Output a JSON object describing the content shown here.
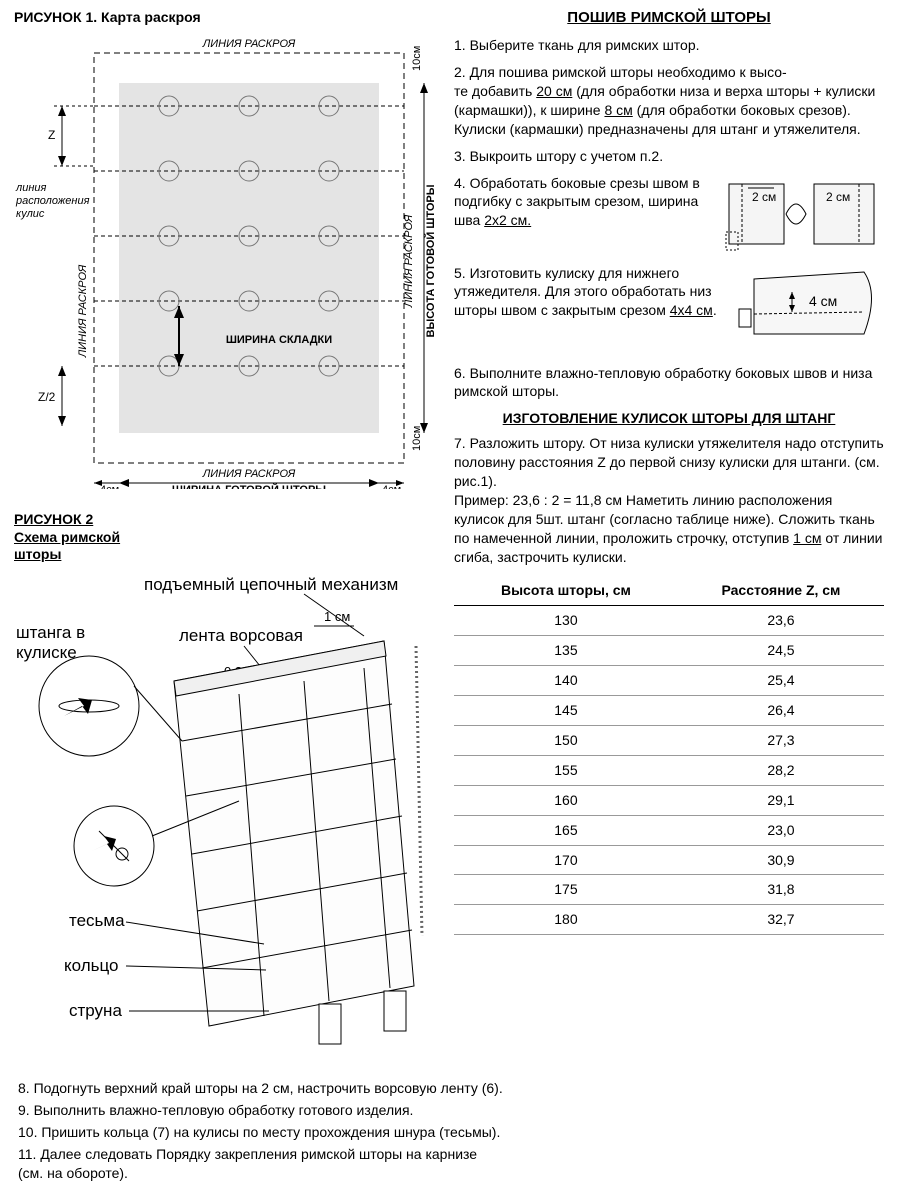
{
  "fig1": {
    "title": "РИСУНОК 1. Карта раскроя",
    "labels": {
      "cut_line": "ЛИНИЯ РАСКРОЯ",
      "height": "ВЫСОТА ГОТОВОЙ ШТОРЫ",
      "width": "ШИРИНА ГОТОВОЙ ШТОРЫ",
      "fold_width": "ШИРИНА СКЛАДКИ",
      "kulis_line1": "линия",
      "kulis_line2": "расположения",
      "kulis_line3": "кулис",
      "z": "Z",
      "z2": "Z/2",
      "m4": "4см",
      "m10": "10см"
    },
    "grid": {
      "rows": 5,
      "cols": 3
    },
    "colors": {
      "fabric": "#e4e4e4",
      "line": "#000000"
    }
  },
  "fig2": {
    "title1": "РИСУНОК 2",
    "title2": "Схема римской",
    "title3": "шторы",
    "labels": {
      "mechanism": "подъемный цепочный механизм",
      "rod": "штанга в",
      "rod2": "кулиске",
      "tape": "лента ворсовая",
      "m1": "1 см",
      "m02": "0,2см",
      "braid": "тесьма",
      "ring": "кольцо",
      "string": "струна"
    }
  },
  "sewing": {
    "title": "ПОШИВ РИМСКОЙ ШТОРЫ",
    "s1": "1. Выберите ткань для римских штор.",
    "s2a": "2. Для пошива римской шторы необходимо к высо-",
    "s2b": "те добавить ",
    "s2c": "20 см",
    "s2d": " (для обработки низа и верха шторы + кулиски (кармашки)), к ширине ",
    "s2e": "8 см",
    "s2f": " (для обработки боковых срезов). Кулиски (кармашки) предназначены для штанг и утяжелителя.",
    "s3": "3. Выкроить штору с учетом п.2.",
    "s4a": "4. Обработать боковые срезы швом в подгибку с закрытым срезом, ширина шва ",
    "s4b": "2х2 см.",
    "s5a": "5. Изготовить кулиску для нижнего утяжедителя. Для этого обработать низ шторы швом с закрытым срезом ",
    "s5b": "4х4 см",
    "s5c": ".",
    "s6": "6. Выполните влажно-тепловую обработку боковых швов и низа римской шторы.",
    "mini4": {
      "l1": "2 см",
      "l2": "2 см"
    },
    "mini5": {
      "l1": "4 см"
    }
  },
  "making": {
    "title": "ИЗГОТОВЛЕНИЕ КУЛИСОК ШТОРЫ ДЛЯ ШТАНГ",
    "s7a": "7. Разложить штору. От низа кулиски утяжелителя надо отступить половину расстояния Z до первой снизу кулиски для штанги. (см. рис.1).",
    "s7b": "Пример: 23,6 : 2 = 11,8 см Наметить линию расположения кулисок для 5шт. штанг (согласно таблице ниже). Сложить ткань по намеченной линии, проложить строчку, отступив ",
    "s7c": "1 см",
    "s7d": " от линии сгиба, застрочить кулиски."
  },
  "table": {
    "h1": "Высота шторы, см",
    "h2": "Расстояние Z, см",
    "rows": [
      [
        "130",
        "23,6"
      ],
      [
        "135",
        "24,5"
      ],
      [
        "140",
        "25,4"
      ],
      [
        "145",
        "26,4"
      ],
      [
        "150",
        "27,3"
      ],
      [
        "155",
        "28,2"
      ],
      [
        "160",
        "29,1"
      ],
      [
        "165",
        "23,0"
      ],
      [
        "170",
        "30,9"
      ],
      [
        "175",
        "31,8"
      ],
      [
        "180",
        "32,7"
      ]
    ]
  },
  "bottom": {
    "s8": "8. Подогнуть верхний край шторы на 2 см, настрочить ворсовую ленту (6).",
    "s9": "9. Выполнить влажно-тепловую обработку готового изделия.",
    "s10": "10. Пришить кольца (7) на кулисы по месту прохождения шнура (тесьмы).",
    "s11a": "11. Далее следовать Порядку закрепления римской шторы на карнизе",
    "s11b": "(см. на обороте)."
  }
}
